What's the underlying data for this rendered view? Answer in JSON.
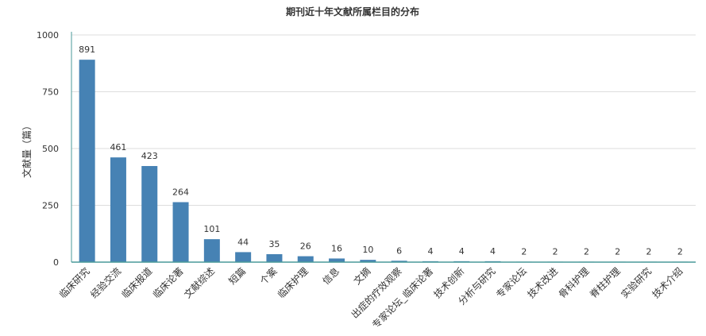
{
  "chart_data": {
    "type": "bar",
    "title": "期刊近十年文献所属栏目的分布",
    "xlabel": "",
    "ylabel": "文献量（篇）",
    "ylim": [
      0,
      1000
    ],
    "yticks": [
      0,
      250,
      500,
      750,
      1000
    ],
    "grid": true,
    "legend": "none",
    "categories": [
      "临床研究",
      "经验交流",
      "临床报道",
      "临床论著",
      "文献综述",
      "短篇",
      "个案",
      "临床护理",
      "信息",
      "文摘",
      "出症的疗效观察",
      "专家论坛_临床论著",
      "技术创新",
      "分析与研究",
      "专家论坛",
      "技术改进",
      "骨科护理",
      "脊柱护理",
      "实验研究",
      "技术介绍"
    ],
    "values": [
      891,
      461,
      423,
      264,
      101,
      44,
      35,
      26,
      16,
      10,
      6,
      4,
      4,
      4,
      2,
      2,
      2,
      2,
      2,
      2
    ],
    "colors": {
      "bar": "#4682b4",
      "axis": "#4a9a9a",
      "grid": "#dddddd",
      "text": "#333333"
    }
  }
}
